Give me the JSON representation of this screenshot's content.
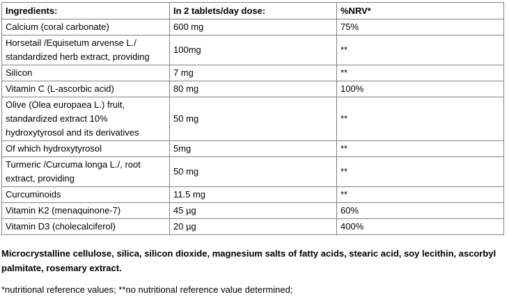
{
  "table": {
    "headers": [
      "Ingredients:",
      "In 2 tablets/day dose:",
      "%NRV*"
    ],
    "rows": [
      {
        "ingredient": "Calcium (coral carbonate)",
        "dose": "600 mg",
        "nrv": "75%"
      },
      {
        "ingredient": "Horsetail /Equisetum arvense L./ standardized herb extract, providing",
        "dose": "100mg",
        "nrv": "**"
      },
      {
        "ingredient": "Silicon",
        "dose": "7 mg",
        "nrv": "**"
      },
      {
        "ingredient": "Vitamin C (L-ascorbic acid)",
        "dose": "80 mg",
        "nrv": "100%"
      },
      {
        "ingredient": "Olive (Olea europaea L.) fruit, standardized extract 10% hydroxytyrosol and its derivatives",
        "dose": "50 mg",
        "nrv": "**"
      },
      {
        "ingredient": "Of which hydroxytyrosol",
        "dose": "5mg",
        "nrv": "**"
      },
      {
        "ingredient": "Turmeric /Curcuma longa L./, root extract, providing",
        "dose": "50 mg",
        "nrv": "**"
      },
      {
        "ingredient": "Curcuminoids",
        "dose": "11.5 mg",
        "nrv": "**"
      },
      {
        "ingredient": "Vitamin K2 (menaquinone-7)",
        "dose": "45 µg",
        "nrv": "60%"
      },
      {
        "ingredient": "Vitamin D3 (cholecalciferol)",
        "dose": "20 µg",
        "nrv": "400%"
      }
    ]
  },
  "other_ingredients": "Microcrystalline cellulose, silica, silicon dioxide, magnesium salts of fatty acids, stearic acid, soy lecithin, ascorbyl palmitate, rosemary extract.",
  "footnote": "*nutritional reference values; **no nutritional reference value determined;",
  "colors": {
    "border": "#808080",
    "text": "#000000",
    "background": "#ffffff"
  }
}
